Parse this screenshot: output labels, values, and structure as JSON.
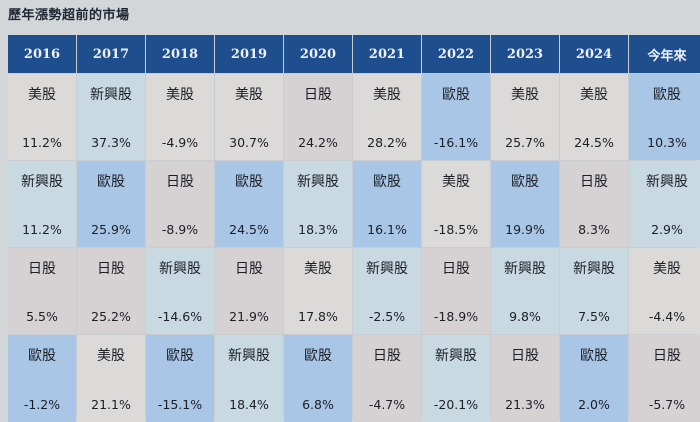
{
  "title": "歷年漲勢超前的市場",
  "headers": [
    "2016",
    "2017",
    "2018",
    "2019",
    "2020",
    "2021",
    "2022",
    "2023",
    "2024",
    "今年來"
  ],
  "rows": [
    [
      {
        "market": "美股",
        "value": "11.2%"
      },
      {
        "market": "新興股",
        "value": "37.3%"
      },
      {
        "market": "美股",
        "value": "-4.9%"
      },
      {
        "market": "美股",
        "value": "30.7%"
      },
      {
        "market": "日股",
        "value": "24.2%"
      },
      {
        "market": "美股",
        "value": "28.2%"
      },
      {
        "market": "歐股",
        "value": "-16.1%"
      },
      {
        "market": "美股",
        "value": "25.7%"
      },
      {
        "market": "美股",
        "value": "24.5%"
      },
      {
        "market": "歐股",
        "value": "10.3%"
      }
    ],
    [
      {
        "market": "新興股",
        "value": "11.2%"
      },
      {
        "market": "歐股",
        "value": "25.9%"
      },
      {
        "market": "日股",
        "value": "-8.9%"
      },
      {
        "market": "歐股",
        "value": "24.5%"
      },
      {
        "market": "新興股",
        "value": "18.3%"
      },
      {
        "market": "歐股",
        "value": "16.1%"
      },
      {
        "market": "美股",
        "value": "-18.5%"
      },
      {
        "market": "歐股",
        "value": "19.9%"
      },
      {
        "market": "日股",
        "value": "8.3%"
      },
      {
        "market": "新興股",
        "value": "2.9%"
      }
    ],
    [
      {
        "market": "日股",
        "value": "5.5%"
      },
      {
        "market": "日股",
        "value": "25.2%"
      },
      {
        "market": "新興股",
        "value": "-14.6%"
      },
      {
        "market": "日股",
        "value": "21.9%"
      },
      {
        "market": "美股",
        "value": "17.8%"
      },
      {
        "market": "新興股",
        "value": "-2.5%"
      },
      {
        "market": "日股",
        "value": "-18.9%"
      },
      {
        "market": "新興股",
        "value": "9.8%"
      },
      {
        "market": "新興股",
        "value": "7.5%"
      },
      {
        "market": "美股",
        "value": "-4.4%"
      }
    ],
    [
      {
        "market": "歐股",
        "value": "-1.2%"
      },
      {
        "market": "美股",
        "value": "21.1%"
      },
      {
        "market": "歐股",
        "value": "-15.1%"
      },
      {
        "market": "新興股",
        "value": "18.4%"
      },
      {
        "market": "歐股",
        "value": "6.8%"
      },
      {
        "market": "日股",
        "value": "-4.7%"
      },
      {
        "market": "新興股",
        "value": "-20.1%"
      },
      {
        "market": "日股",
        "value": "21.3%"
      },
      {
        "market": "歐股",
        "value": "2.0%"
      },
      {
        "market": "日股",
        "value": "-5.7%"
      }
    ]
  ],
  "market_colors": {
    "美股": "#dcdad8",
    "新興股": "#c9d9e2",
    "日股": "#d6d1d3",
    "歐股": "#a9c6e6"
  },
  "header_color": "#1f4e8f"
}
